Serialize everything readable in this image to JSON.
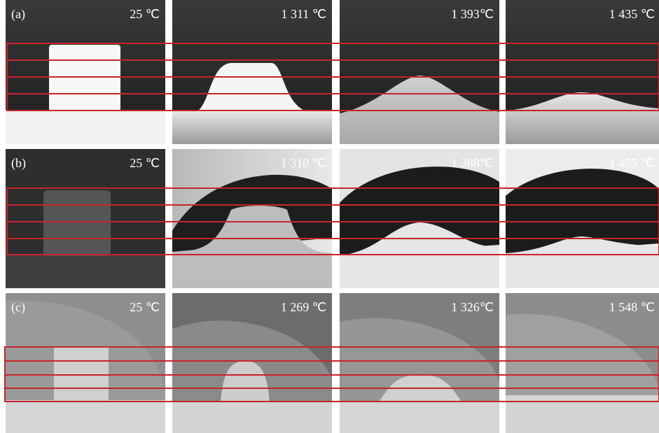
{
  "panels": [
    {
      "label": "(a)",
      "temperatures": [
        "25 ℃",
        "1 311 ℃",
        "1 393℃",
        "1 435 ℃"
      ]
    },
    {
      "label": "(b)",
      "temperatures": [
        "25 ℃",
        "1 310 ℃",
        "1 388℃",
        "1 455 ℃"
      ]
    },
    {
      "label": "(c)",
      "temperatures": [
        "25 ℃",
        "1 269 ℃",
        "1 326℃",
        "1 548 ℃"
      ]
    }
  ]
}
